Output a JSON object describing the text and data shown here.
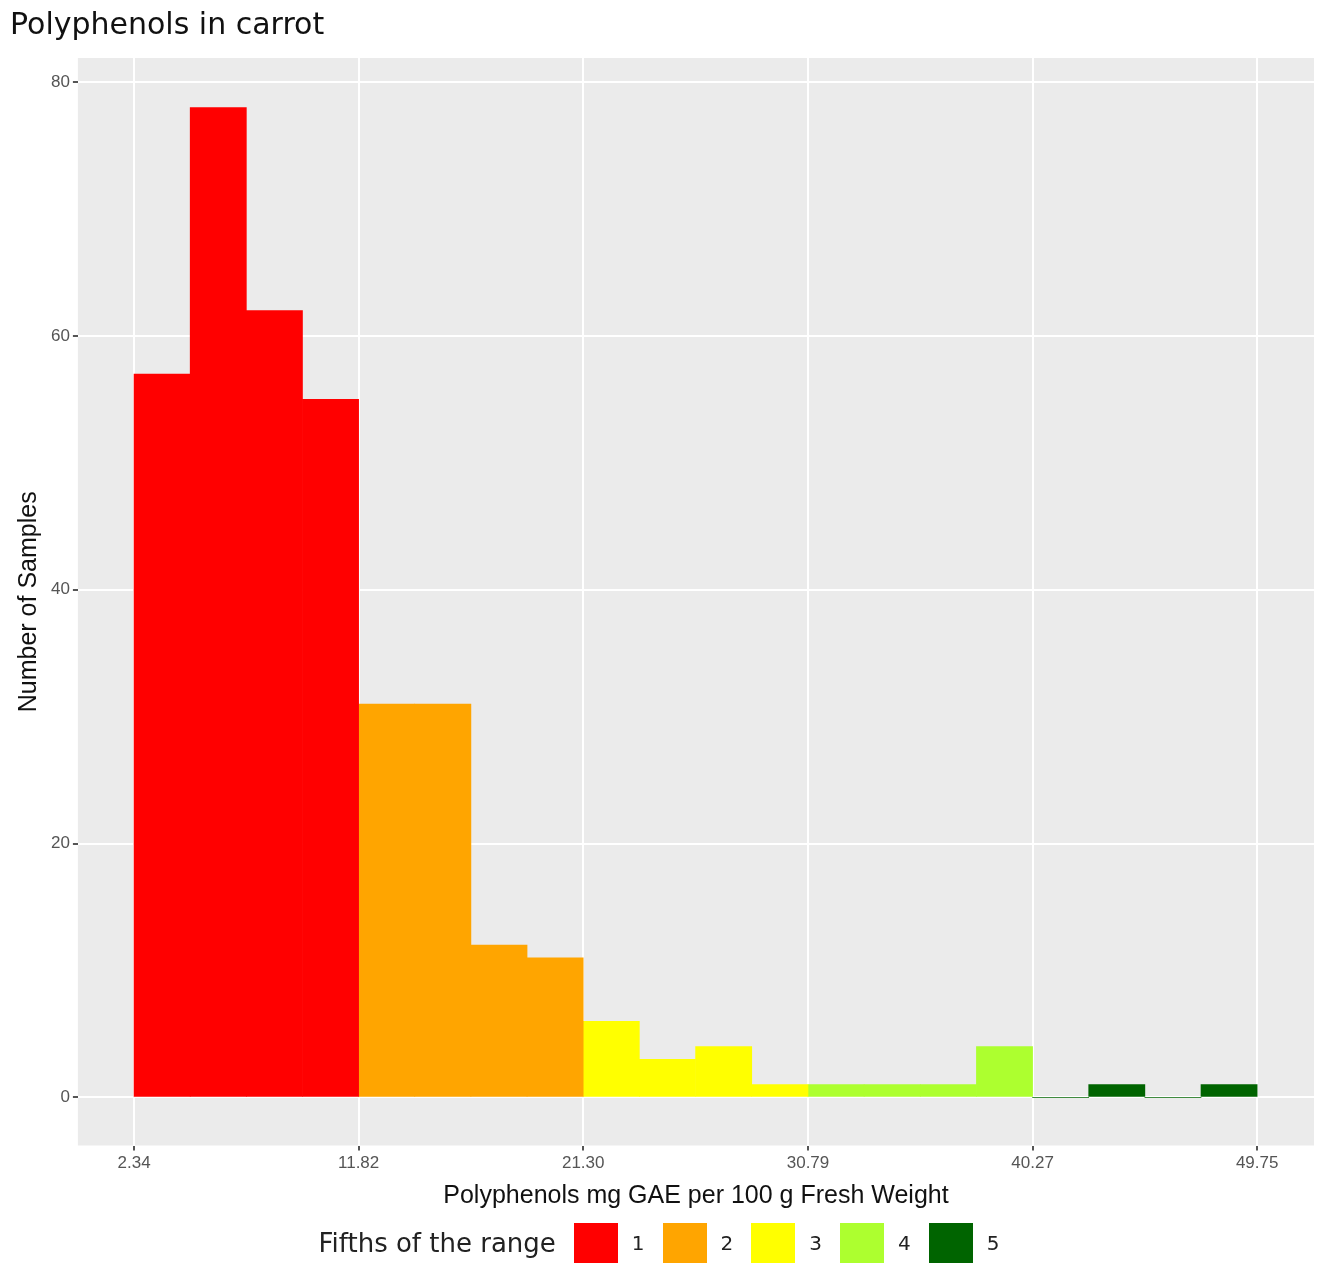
{
  "chart_data": {
    "type": "histogram",
    "title": "Polyphenols in carrot",
    "xlabel": "Polyphenols mg GAE per 100 g Fresh Weight",
    "ylabel": "Number of Samples",
    "legend_title": "Fifths of the range",
    "legend": "bottom",
    "grid": true,
    "bins": [
      2.34,
      4.71,
      7.08,
      9.45,
      11.82,
      14.19,
      16.56,
      18.93,
      21.3,
      23.67,
      26.04,
      28.42,
      30.79,
      33.16,
      35.53,
      37.9,
      40.27,
      42.64,
      45.01,
      47.38,
      49.75
    ],
    "series": [
      {
        "name": "1",
        "color": "#ff0000",
        "values": [
          57,
          78,
          62,
          55,
          null,
          null,
          null,
          null,
          null,
          null,
          null,
          null,
          null,
          null,
          null,
          null,
          null,
          null,
          null,
          null
        ]
      },
      {
        "name": "2",
        "color": "#ffa500",
        "values": [
          null,
          null,
          null,
          null,
          31,
          31,
          12,
          11,
          null,
          null,
          null,
          null,
          null,
          null,
          null,
          null,
          null,
          null,
          null,
          null
        ]
      },
      {
        "name": "3",
        "color": "#ffff00",
        "values": [
          null,
          null,
          null,
          null,
          null,
          null,
          null,
          null,
          6,
          3,
          4,
          1,
          null,
          null,
          null,
          null,
          null,
          null,
          null,
          null
        ]
      },
      {
        "name": "4",
        "color": "#adff2f",
        "values": [
          null,
          null,
          null,
          null,
          null,
          null,
          null,
          null,
          null,
          null,
          null,
          null,
          1,
          1,
          1,
          4,
          null,
          null,
          null,
          null
        ]
      },
      {
        "name": "5",
        "color": "#006400",
        "values": [
          null,
          null,
          null,
          null,
          null,
          null,
          null,
          null,
          null,
          null,
          null,
          null,
          null,
          null,
          null,
          null,
          0,
          1,
          0,
          1
        ]
      }
    ],
    "xlim": [
      -0.03,
      52.15
    ],
    "ylim": [
      -3.8,
      81.9
    ],
    "xticks": [
      2.34,
      11.82,
      {
        "value": 21.3,
        "label": "21.30"
      },
      30.79,
      40.27,
      49.75
    ],
    "yticks": [
      0,
      20,
      40,
      60,
      80
    ]
  }
}
